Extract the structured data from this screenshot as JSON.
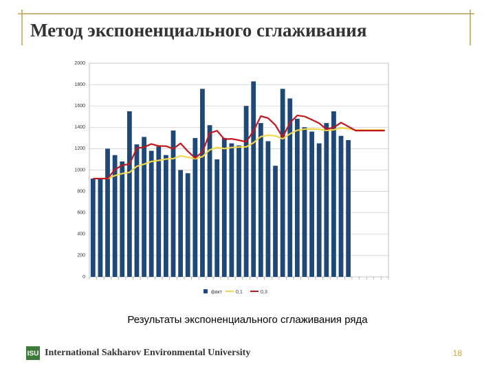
{
  "title": "Метод экспоненциального сглаживания",
  "caption": "Результаты экспоненциального сглаживания ряда",
  "footer": {
    "logo": "ISU",
    "university": "International Sakharov Environmental University",
    "page_number": "18"
  },
  "chart_data": {
    "type": "bar-line",
    "categories": [
      null,
      null,
      null,
      null,
      null,
      null,
      null,
      null,
      null,
      null,
      null,
      null,
      null,
      null,
      null,
      null,
      null,
      null,
      null,
      null,
      null,
      null,
      null,
      null,
      null,
      null,
      null,
      null,
      null,
      null,
      null,
      null,
      null,
      null,
      null,
      null,
      null,
      null,
      null,
      null,
      null
    ],
    "series": [
      {
        "name": "факт",
        "type": "bar",
        "color": "#1d4877",
        "values": [
          920,
          920,
          1200,
          1140,
          1080,
          1550,
          1240,
          1310,
          1180,
          1220,
          1140,
          1370,
          1000,
          970,
          1300,
          1760,
          1420,
          1100,
          1300,
          1250,
          1230,
          1600,
          1830,
          1440,
          1270,
          1040,
          1760,
          1670,
          1480,
          1400,
          1360,
          1250,
          1440,
          1550,
          1320,
          1280,
          null,
          null,
          null,
          null,
          null
        ]
      },
      {
        "name": "0,1",
        "type": "line",
        "color": "#f2d64b",
        "values": [
          920,
          920,
          920,
          948,
          967,
          978,
          1035,
          1055,
          1080,
          1090,
          1103,
          1107,
          1133,
          1120,
          1105,
          1125,
          1189,
          1212,
          1201,
          1211,
          1215,
          1217,
          1255,
          1313,
          1326,
          1320,
          1292,
          1339,
          1372,
          1383,
          1385,
          1383,
          1370,
          1377,
          1394,
          1387,
          1376,
          1376,
          1376,
          1376,
          1376
        ]
      },
      {
        "name": "0,3",
        "type": "line",
        "color": "#c0161f",
        "values": [
          920,
          920,
          920,
          1004,
          1045,
          1056,
          1204,
          1215,
          1244,
          1225,
          1224,
          1199,
          1250,
          1175,
          1113,
          1169,
          1346,
          1368,
          1288,
          1292,
          1279,
          1264,
          1365,
          1505,
          1486,
          1421,
          1307,
          1443,
          1511,
          1502,
          1471,
          1438,
          1382,
          1399,
          1444,
          1407,
          1369,
          1369,
          1369,
          1369,
          1369
        ]
      }
    ],
    "ylim": [
      0,
      2000
    ],
    "yticks": [
      0,
      200,
      400,
      600,
      800,
      1000,
      1200,
      1400,
      1600,
      1800,
      2000
    ],
    "grid": true
  }
}
